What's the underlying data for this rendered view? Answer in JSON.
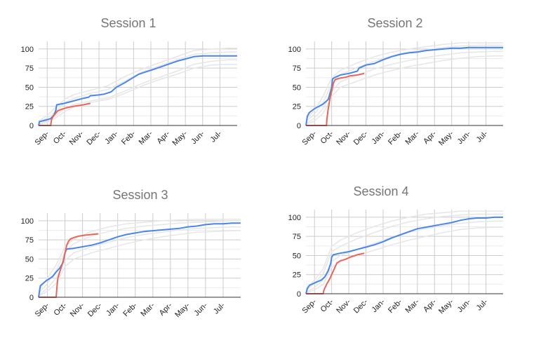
{
  "colors": {
    "blue": "#4a86e8",
    "red": "#e8675a",
    "ghost": "#e6e6e6",
    "grid": "#cccccc",
    "axis": "#333333"
  },
  "chart_data": [
    {
      "type": "line",
      "title": "Session 1",
      "xlabel": "",
      "ylabel": "",
      "categories": [
        "Sep-",
        "Oct-",
        "Nov-",
        "Dec-",
        "Jan-",
        "Feb-",
        "Mar-",
        "Apr-",
        "May-",
        "Jun-",
        "Jul-"
      ],
      "yticks": [
        "0",
        "25",
        "50",
        "75",
        "100"
      ],
      "ylim": [
        0,
        110
      ],
      "xlim": [
        0,
        11.5
      ],
      "grid": true,
      "series": [
        {
          "color": "blue",
          "x": [
            0,
            0.05,
            0.4,
            0.7,
            0.9,
            1.0,
            1.05,
            1.5,
            2.0,
            2.5,
            2.9,
            3.0,
            3.5,
            3.8,
            4.2,
            4.5,
            5.0,
            5.5,
            5.8,
            6.2,
            6.6,
            7.0,
            7.5,
            8.0,
            8.5,
            9.0,
            9.5,
            10.0,
            10.5,
            11.0,
            11.5
          ],
          "y": [
            0,
            5,
            7,
            9,
            14,
            20,
            27,
            29,
            32,
            35,
            37,
            39,
            40,
            41,
            44,
            50,
            56,
            63,
            67,
            70,
            73,
            76,
            80,
            84,
            87,
            90,
            91,
            91,
            91,
            91,
            91
          ]
        },
        {
          "color": "red",
          "x": [
            0,
            0.7,
            0.75,
            0.85,
            1.0,
            1.1,
            1.3,
            1.6,
            2.0,
            2.3,
            2.6,
            3.0
          ],
          "y": [
            0,
            0,
            8,
            12,
            16,
            19,
            21,
            23,
            25,
            26,
            27,
            29
          ]
        }
      ],
      "ghosts": [
        {
          "x": [
            0,
            0.5,
            1,
            1.5,
            2,
            3,
            4,
            5,
            6,
            7,
            8,
            9,
            10,
            11,
            11.5
          ],
          "y": [
            4,
            10,
            18,
            30,
            35,
            42,
            47,
            58,
            70,
            78,
            86,
            93,
            95,
            96,
            96
          ]
        },
        {
          "x": [
            0,
            0.5,
            1,
            1.5,
            2,
            3,
            4,
            5,
            6,
            7,
            8,
            9,
            10,
            11,
            11.5
          ],
          "y": [
            2,
            6,
            13,
            22,
            27,
            32,
            36,
            45,
            55,
            63,
            71,
            80,
            84,
            86,
            86
          ]
        },
        {
          "x": [
            0,
            0.5,
            1,
            1.5,
            2,
            3,
            4,
            5,
            6,
            7,
            8,
            9,
            10,
            11,
            11.5
          ],
          "y": [
            6,
            13,
            24,
            34,
            40,
            46,
            52,
            64,
            74,
            82,
            90,
            98,
            100,
            101,
            101
          ]
        },
        {
          "x": [
            0,
            0.5,
            1,
            1.5,
            2,
            3,
            4,
            5,
            6,
            7,
            8,
            9,
            10,
            11,
            11.5
          ],
          "y": [
            1,
            4,
            10,
            18,
            24,
            30,
            34,
            42,
            52,
            60,
            67,
            75,
            79,
            80,
            80
          ]
        }
      ]
    },
    {
      "type": "line",
      "title": "Session 2",
      "xlabel": "",
      "ylabel": "",
      "categories": [
        "Sep-",
        "Oct-",
        "Nov-",
        "Dec-",
        "Jan-",
        "Feb-",
        "Mar-",
        "Apr-",
        "May-",
        "Jun-",
        "Jul-"
      ],
      "yticks": [
        "0",
        "25",
        "50",
        "75",
        "100"
      ],
      "ylim": [
        0,
        110
      ],
      "xlim": [
        0,
        11.5
      ],
      "grid": true,
      "series": [
        {
          "color": "blue",
          "x": [
            0,
            0.08,
            0.2,
            0.5,
            1.0,
            1.3,
            1.5,
            1.55,
            1.7,
            2.0,
            2.5,
            3.0,
            3.1,
            3.5,
            4.0,
            4.5,
            5.0,
            5.5,
            6.0,
            6.5,
            7.0,
            7.5,
            8.0,
            8.5,
            9.0,
            9.5,
            10.0,
            10.5,
            11.0,
            11.5
          ],
          "y": [
            0,
            12,
            17,
            22,
            28,
            34,
            50,
            61,
            63,
            66,
            68,
            71,
            75,
            79,
            81,
            86,
            90,
            93,
            95,
            96,
            98,
            99,
            100,
            101,
            101,
            102,
            102,
            102,
            102,
            102
          ]
        },
        {
          "color": "red",
          "x": [
            0,
            1.2,
            1.22,
            1.3,
            1.4,
            1.5,
            1.6,
            1.7,
            2.0,
            2.3,
            2.6,
            3.0,
            3.4
          ],
          "y": [
            0,
            0,
            8,
            22,
            35,
            45,
            55,
            60,
            62,
            63,
            65,
            66,
            68
          ]
        }
      ],
      "ghosts": [
        {
          "x": [
            0,
            0.5,
            1,
            1.5,
            2,
            3,
            4,
            5,
            6,
            7,
            8,
            9,
            10,
            11,
            11.5
          ],
          "y": [
            5,
            15,
            30,
            55,
            66,
            76,
            84,
            91,
            96,
            99,
            102,
            104,
            105,
            105,
            105
          ]
        },
        {
          "x": [
            0,
            0.5,
            1,
            1.5,
            2,
            3,
            4,
            5,
            6,
            7,
            8,
            9,
            10,
            11,
            11.5
          ],
          "y": [
            2,
            10,
            22,
            45,
            57,
            66,
            74,
            80,
            85,
            89,
            92,
            95,
            96,
            97,
            97
          ]
        },
        {
          "x": [
            0,
            0.5,
            1,
            1.5,
            2,
            3,
            4,
            5,
            6,
            7,
            8,
            9,
            10,
            11,
            11.5
          ],
          "y": [
            8,
            20,
            38,
            62,
            72,
            82,
            90,
            96,
            100,
            103,
            106,
            108,
            108,
            108,
            108
          ]
        },
        {
          "x": [
            0,
            0.5,
            1,
            1.5,
            2,
            3,
            4,
            5,
            6,
            7,
            8,
            9,
            10,
            11,
            11.5
          ],
          "y": [
            1,
            6,
            16,
            38,
            50,
            58,
            66,
            72,
            77,
            81,
            85,
            88,
            90,
            91,
            91
          ]
        }
      ]
    },
    {
      "type": "line",
      "title": "Session 3",
      "xlabel": "",
      "ylabel": "",
      "categories": [
        "Sep-",
        "Oct-",
        "Nov-",
        "Dec-",
        "Jan-",
        "Feb-",
        "Mar-",
        "Apr-",
        "May-",
        "Jun-",
        "Jul-"
      ],
      "yticks": [
        "0",
        "25",
        "50",
        "75",
        "100"
      ],
      "ylim": [
        0,
        110
      ],
      "xlim": [
        0,
        11.5
      ],
      "grid": true,
      "series": [
        {
          "color": "blue",
          "x": [
            0,
            0.05,
            0.1,
            0.4,
            0.8,
            1.0,
            1.2,
            1.4,
            1.5,
            1.6,
            2.0,
            2.5,
            3.0,
            3.5,
            4.0,
            4.5,
            5.0,
            5.5,
            6.0,
            6.5,
            7.0,
            7.5,
            8.0,
            8.5,
            9.0,
            9.5,
            10.0,
            10.5,
            11.0,
            11.5
          ],
          "y": [
            0,
            8,
            15,
            21,
            27,
            33,
            38,
            46,
            58,
            63,
            64,
            66,
            68,
            71,
            75,
            79,
            82,
            84,
            86,
            87,
            88,
            89,
            90,
            92,
            93,
            95,
            96,
            96,
            97,
            97
          ]
        },
        {
          "color": "red",
          "x": [
            0,
            0.7,
            1.0,
            1.05,
            1.1,
            1.2,
            1.3,
            1.4,
            1.5,
            1.6,
            1.7,
            1.8,
            2.0,
            2.3,
            2.6,
            3.0,
            3.4
          ],
          "y": [
            0,
            0,
            0,
            15,
            25,
            33,
            40,
            48,
            57,
            68,
            73,
            76,
            78,
            80,
            81,
            82,
            83
          ]
        }
      ],
      "ghosts": [
        {
          "x": [
            0,
            0.5,
            1,
            1.5,
            2,
            3,
            4,
            5,
            6,
            7,
            8,
            9,
            10,
            11,
            11.5
          ],
          "y": [
            5,
            18,
            35,
            60,
            70,
            80,
            86,
            90,
            93,
            95,
            97,
            98,
            99,
            100,
            100
          ]
        },
        {
          "x": [
            0,
            0.5,
            1,
            1.5,
            2,
            3,
            4,
            5,
            6,
            7,
            8,
            9,
            10,
            11,
            11.5
          ],
          "y": [
            2,
            12,
            25,
            48,
            58,
            66,
            72,
            78,
            82,
            85,
            88,
            90,
            91,
            92,
            92
          ]
        },
        {
          "x": [
            0,
            0.5,
            1,
            1.5,
            2,
            3,
            4,
            5,
            6,
            7,
            8,
            9,
            10,
            11,
            11.5
          ],
          "y": [
            8,
            25,
            42,
            66,
            76,
            86,
            92,
            96,
            98,
            100,
            101,
            102,
            102,
            102,
            102
          ]
        },
        {
          "x": [
            0,
            0.5,
            1,
            1.5,
            2,
            3,
            4,
            5,
            6,
            7,
            8,
            9,
            10,
            11,
            11.5
          ],
          "y": [
            1,
            8,
            18,
            40,
            50,
            58,
            64,
            70,
            75,
            79,
            82,
            85,
            86,
            87,
            87
          ]
        }
      ]
    },
    {
      "type": "line",
      "title": "Session 4",
      "xlabel": "",
      "ylabel": "",
      "categories": [
        "Sep-",
        "Oct-",
        "Nov-",
        "Dec-",
        "Jan-",
        "Feb-",
        "Mar-",
        "Apr-",
        "May-",
        "Jun-",
        "Jul-"
      ],
      "yticks": [
        "0",
        "25",
        "50",
        "75",
        "100"
      ],
      "ylim": [
        0,
        110
      ],
      "xlim": [
        0,
        11.5
      ],
      "grid": true,
      "series": [
        {
          "color": "blue",
          "x": [
            0,
            0.08,
            0.2,
            0.5,
            0.9,
            1.1,
            1.3,
            1.45,
            1.5,
            1.6,
            2.0,
            2.5,
            3.0,
            3.5,
            4.0,
            4.5,
            5.0,
            5.5,
            6.0,
            6.5,
            7.0,
            7.5,
            8.0,
            8.5,
            9.0,
            9.5,
            10.0,
            10.5,
            11.0,
            11.5
          ],
          "y": [
            0,
            7,
            11,
            14,
            18,
            22,
            30,
            40,
            48,
            51,
            53,
            55,
            58,
            61,
            64,
            68,
            73,
            77,
            81,
            85,
            87,
            89,
            91,
            93,
            96,
            98,
            99,
            99,
            100,
            100
          ]
        },
        {
          "color": "red",
          "x": [
            0,
            1.0,
            1.05,
            1.2,
            1.4,
            1.6,
            1.8,
            2.0,
            2.3,
            2.6,
            3.0,
            3.4
          ],
          "y": [
            0,
            0,
            5,
            12,
            20,
            30,
            40,
            43,
            45,
            48,
            51,
            53
          ]
        }
      ],
      "ghosts": [
        {
          "x": [
            0,
            0.5,
            1,
            1.5,
            2,
            3,
            4,
            5,
            6,
            7,
            8,
            9,
            10,
            11,
            11.5
          ],
          "y": [
            4,
            14,
            26,
            55,
            62,
            72,
            80,
            88,
            94,
            98,
            101,
            103,
            104,
            104,
            104
          ]
        },
        {
          "x": [
            0,
            0.5,
            1,
            1.5,
            2,
            3,
            4,
            5,
            6,
            7,
            8,
            9,
            10,
            11,
            11.5
          ],
          "y": [
            2,
            8,
            18,
            42,
            50,
            58,
            66,
            74,
            80,
            85,
            89,
            92,
            94,
            95,
            95
          ]
        },
        {
          "x": [
            0,
            0.5,
            1,
            1.5,
            2,
            3,
            4,
            5,
            6,
            7,
            8,
            9,
            10,
            11,
            11.5
          ],
          "y": [
            6,
            18,
            32,
            62,
            70,
            80,
            88,
            95,
            100,
            104,
            106,
            108,
            108,
            108,
            108
          ]
        },
        {
          "x": [
            0,
            0.5,
            1,
            1.5,
            2,
            3,
            4,
            5,
            6,
            7,
            8,
            9,
            10,
            11,
            11.5
          ],
          "y": [
            1,
            5,
            12,
            34,
            42,
            50,
            57,
            64,
            70,
            75,
            80,
            84,
            86,
            87,
            87
          ]
        }
      ]
    }
  ]
}
